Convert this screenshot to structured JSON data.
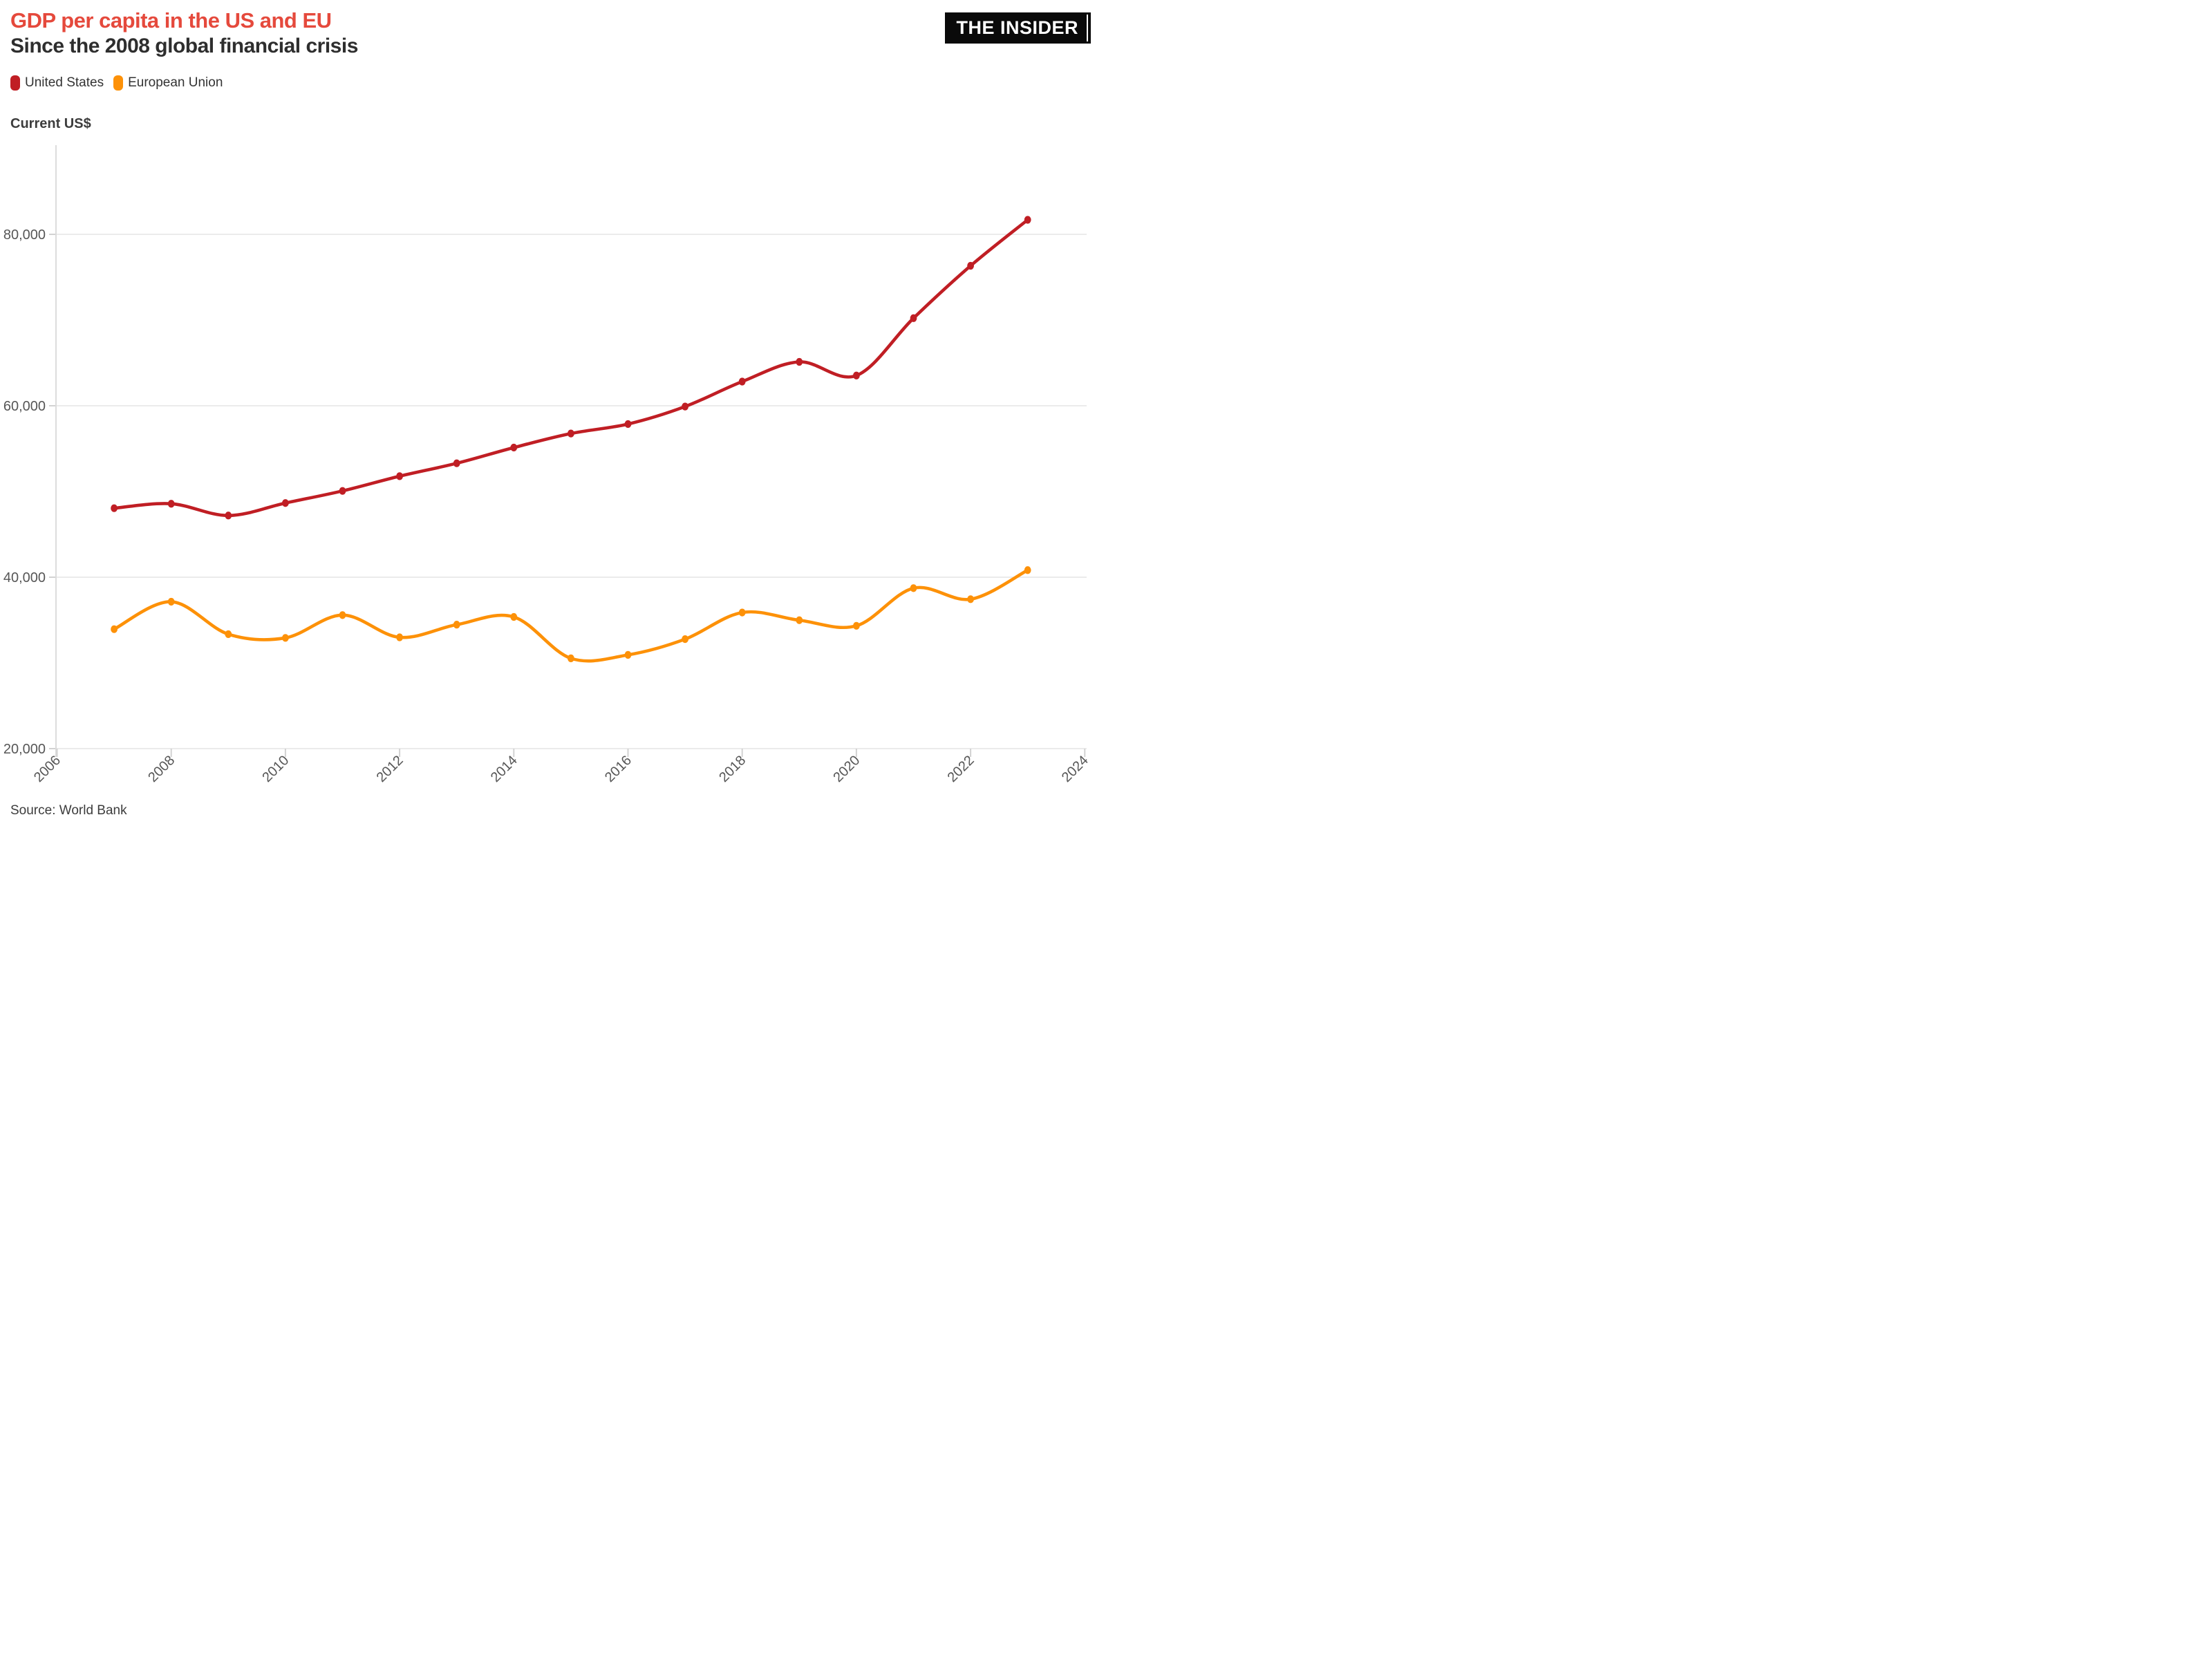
{
  "header": {
    "title": "GDP per capita in the US and EU",
    "subtitle": "Since the 2008 global financial crisis",
    "brand": "THE INSIDER"
  },
  "source": {
    "label": "Source: World Bank"
  },
  "colors": {
    "title": "#e5493c",
    "subtitle": "#2e2e2e",
    "us_line": "#c01e24",
    "eu_line": "#fd9108",
    "gridline": "#ebebeb",
    "axis_line": "#dcdcdc",
    "tick": "#d2d2d2",
    "tick_label": "#565656",
    "brand_bg": "#0a0a0a",
    "brand_fg": "#ffffff"
  },
  "chart_data": {
    "type": "line",
    "title": "GDP per capita in the US and EU",
    "subtitle": "Since the 2008 global financial crisis",
    "xlabel": "",
    "ylabel": "Current US$",
    "x": [
      2007,
      2008,
      2009,
      2010,
      2011,
      2012,
      2013,
      2014,
      2015,
      2016,
      2017,
      2018,
      2019,
      2020,
      2021,
      2022,
      2023
    ],
    "series": [
      {
        "name": "United States",
        "color": "#c01e24",
        "values": [
          48050,
          48570,
          47195,
          48651,
          50066,
          51784,
          53291,
          55124,
          56763,
          57867,
          59908,
          62823,
          65120,
          63528,
          70219,
          76330,
          81695
        ]
      },
      {
        "name": "European Union",
        "color": "#fd9108",
        "values": [
          33935,
          37140,
          33351,
          32917,
          35577,
          32983,
          34463,
          35361,
          30534,
          30938,
          32774,
          35879,
          34982,
          34331,
          38722,
          37434,
          40824
        ]
      }
    ],
    "xlim": [
      2006,
      2024
    ],
    "ylim": [
      20000,
      90000
    ],
    "x_ticks": [
      2006,
      2008,
      2010,
      2012,
      2014,
      2016,
      2018,
      2020,
      2022,
      2024
    ],
    "y_ticks": [
      20000,
      40000,
      60000,
      80000
    ],
    "grid": true,
    "legend_position": "top-left",
    "source": "Source: World Bank"
  }
}
